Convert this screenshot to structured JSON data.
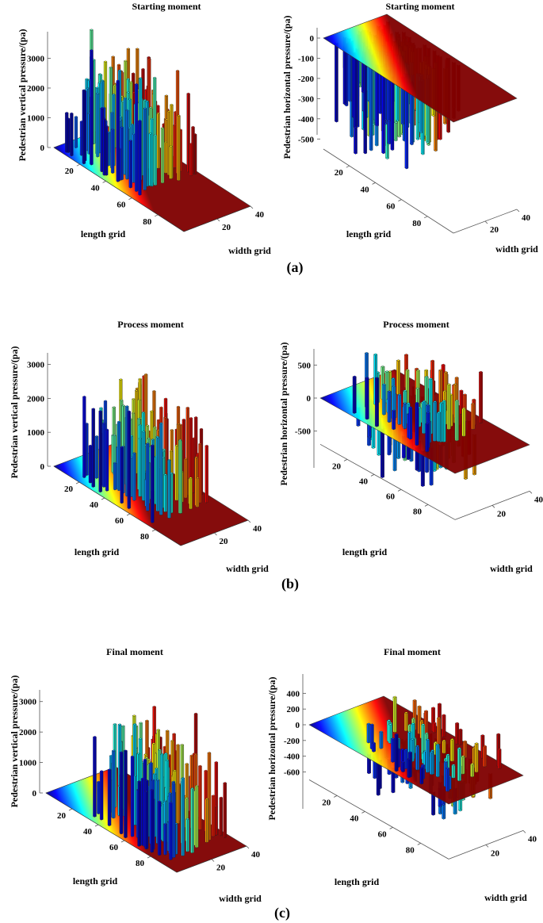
{
  "figure": {
    "panel_labels": [
      "(a)",
      "(b)",
      "(c)"
    ]
  },
  "palette": {
    "jet": [
      "#00007f",
      "#0000ff",
      "#007fff",
      "#00ffff",
      "#7fff7f",
      "#ffff00",
      "#ff7f00",
      "#ff0000",
      "#7f0000"
    ]
  },
  "chart_data": [
    {
      "type": "bar3d",
      "component": "vertical",
      "title": "Starting moment",
      "zlabel": "Pedestrian vertical pressure/(pa)",
      "xlabel": "length grid",
      "ylabel": "width grid",
      "xlim": [
        0,
        100
      ],
      "ylim": [
        0,
        40
      ],
      "zlim": [
        0,
        3200
      ],
      "x_ticks": [
        20,
        40,
        60,
        80
      ],
      "y_ticks": [
        20,
        40
      ],
      "z_ticks": [
        0,
        1000,
        2000,
        3000
      ],
      "z_tick_labels": [
        "0",
        "1000",
        "2000",
        "3000"
      ],
      "peak_pressure": 3900,
      "occupied_length_range": [
        5,
        60
      ],
      "bar_direction": "up"
    },
    {
      "type": "bar3d",
      "component": "horizontal",
      "title": "Starting moment",
      "zlabel": "Pedestrian horizontal pressure/(pa)",
      "xlabel": "length grid",
      "ylabel": "width grid",
      "xlim": [
        0,
        100
      ],
      "ylim": [
        0,
        40
      ],
      "zlim": [
        -550,
        0
      ],
      "x_ticks": [
        20,
        40,
        60,
        80
      ],
      "y_ticks": [
        20,
        40
      ],
      "z_ticks": [
        0,
        -100,
        -200,
        -300,
        -400,
        -500
      ],
      "z_tick_labels": [
        "0",
        "-100",
        "-200",
        "-300",
        "-400",
        "-500"
      ],
      "peak_pressure": -560,
      "occupied_length_range": [
        5,
        60
      ],
      "bar_direction": "down"
    },
    {
      "type": "bar3d",
      "component": "vertical",
      "title": "Process moment",
      "zlabel": "Pedestrian vertical pressure/(pa)",
      "xlabel": "length grid",
      "ylabel": "width grid",
      "xlim": [
        0,
        100
      ],
      "ylim": [
        0,
        40
      ],
      "zlim": [
        0,
        3200
      ],
      "x_ticks": [
        20,
        40,
        60,
        80
      ],
      "y_ticks": [
        20,
        40
      ],
      "z_ticks": [
        0,
        1000,
        2000,
        3000
      ],
      "z_tick_labels": [
        "0",
        "1000",
        "2000",
        "3000"
      ],
      "peak_pressure": 3100,
      "occupied_length_range": [
        15,
        75
      ],
      "bar_direction": "up"
    },
    {
      "type": "bar3d",
      "component": "horizontal",
      "title": "Process moment",
      "zlabel": "Pedestrian horizontal pressure/(pa)",
      "xlabel": "length grid",
      "ylabel": "width grid",
      "xlim": [
        0,
        100
      ],
      "ylim": [
        0,
        40
      ],
      "zlim": [
        -700,
        500
      ],
      "x_ticks": [
        20,
        40,
        60,
        80
      ],
      "y_ticks": [
        20,
        40
      ],
      "z_ticks": [
        500,
        0,
        -500
      ],
      "z_tick_labels": [
        "500",
        "0",
        "-500"
      ],
      "peak_pressure": 900,
      "occupied_length_range": [
        15,
        75
      ],
      "bar_direction": "both"
    },
    {
      "type": "bar3d",
      "component": "vertical",
      "title": "Final moment",
      "zlabel": "Pedestrian vertical pressure/(pa)",
      "xlabel": "length grid",
      "ylabel": "width grid",
      "xlim": [
        0,
        100
      ],
      "ylim": [
        0,
        40
      ],
      "zlim": [
        0,
        3800
      ],
      "x_ticks": [
        20,
        40,
        60,
        80
      ],
      "y_ticks": [
        20,
        40
      ],
      "z_ticks": [
        0,
        1000,
        2000,
        3000
      ],
      "z_tick_labels": [
        "0",
        "1000",
        "2000",
        "3000"
      ],
      "peak_pressure": 3600,
      "occupied_length_range": [
        30,
        90
      ],
      "bar_direction": "up"
    },
    {
      "type": "bar3d",
      "component": "horizontal",
      "title": "Final moment",
      "zlabel": "Pedestrian horizontal pressure/(pa)",
      "xlabel": "length grid",
      "ylabel": "width grid",
      "xlim": [
        0,
        100
      ],
      "ylim": [
        0,
        40
      ],
      "zlim": [
        -700,
        450
      ],
      "x_ticks": [
        20,
        40,
        60,
        80
      ],
      "y_ticks": [
        20,
        40
      ],
      "z_ticks": [
        400,
        200,
        0,
        -200,
        -400,
        -600
      ],
      "z_tick_labels": [
        "400",
        "200",
        "0",
        "-200",
        "-400",
        "-600"
      ],
      "peak_pressure": 500,
      "occupied_length_range": [
        30,
        90
      ],
      "bar_direction": "both"
    }
  ]
}
